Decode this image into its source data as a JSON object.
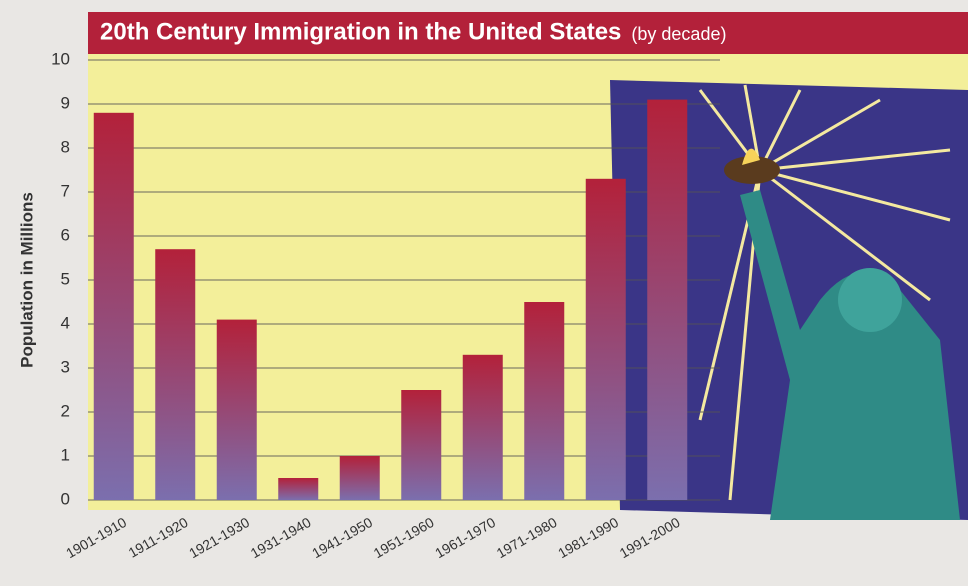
{
  "chart_data": {
    "type": "bar",
    "title": "20th Century Immigration in the United States",
    "subtitle": "(by decade)",
    "y_label": "Population in Millions",
    "categories": [
      "1901-1910",
      "1911-1920",
      "1921-1930",
      "1931-1940",
      "1941-1950",
      "1951-1960",
      "1961-1970",
      "1971-1980",
      "1981-1990",
      "1991-2000"
    ],
    "values": [
      8.8,
      5.7,
      4.1,
      0.5,
      1.0,
      2.5,
      3.3,
      4.5,
      7.3,
      9.1
    ],
    "color": "#b3213a",
    "ylim": [
      0,
      10
    ],
    "yticks": [
      0,
      1,
      2,
      3,
      4,
      5,
      6,
      7,
      8,
      9,
      10
    ],
    "grid": true
  }
}
